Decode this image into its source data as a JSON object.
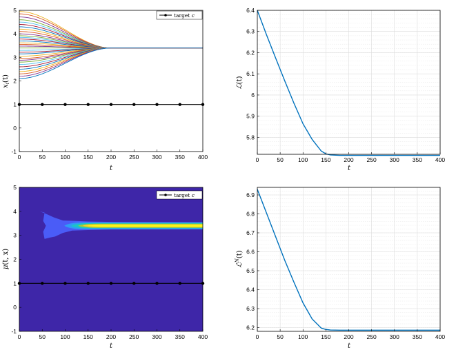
{
  "chart_data": [
    {
      "panel": "top-left",
      "type": "line",
      "xlabel": "t",
      "ylabel": "x_i(t)",
      "xlim": [
        0,
        400
      ],
      "ylim": [
        -1,
        5
      ],
      "xticks": [
        0,
        50,
        100,
        150,
        200,
        250,
        300,
        350,
        400
      ],
      "yticks": [
        -1,
        0,
        1,
        2,
        3,
        4,
        5
      ],
      "grid": false,
      "legend": {
        "placement": "top-right",
        "entries": [
          "target c"
        ]
      },
      "consensus_value": 3.4,
      "consensus_time": 200,
      "initial_values": [
        4.95,
        4.85,
        4.72,
        4.6,
        4.5,
        4.4,
        4.3,
        4.2,
        4.1,
        4.0,
        3.92,
        3.85,
        3.78,
        3.7,
        3.62,
        3.55,
        3.48,
        3.4,
        3.3,
        3.22,
        3.15,
        3.05,
        2.95,
        2.88,
        2.8,
        2.7,
        2.6,
        2.5,
        2.4,
        2.3,
        2.2,
        2.1
      ],
      "series_colors": [
        "#edb120",
        "#d95319",
        "#7e2f8e",
        "#77ac30",
        "#4dbeee",
        "#a2142f",
        "#0072bd",
        "#edb120",
        "#d95319",
        "#7e2f8e",
        "#77ac30",
        "#4dbeee",
        "#a2142f",
        "#0072bd",
        "#edb120",
        "#d95319",
        "#7e2f8e",
        "#77ac30",
        "#4dbeee",
        "#a2142f",
        "#0072bd",
        "#edb120",
        "#d95319",
        "#7e2f8e",
        "#77ac30",
        "#4dbeee",
        "#a2142f",
        "#0072bd",
        "#edb120",
        "#d95319",
        "#7e2f8e",
        "#0072bd"
      ],
      "target": {
        "y": 1,
        "marker_x": [
          0,
          50,
          100,
          150,
          200,
          250,
          300,
          350,
          400
        ],
        "color": "#000000"
      }
    },
    {
      "panel": "top-right",
      "type": "line",
      "xlabel": "t",
      "ylabel": "L(t)",
      "xlim": [
        0,
        400
      ],
      "ylim": [
        5.72,
        6.4
      ],
      "xticks": [
        0,
        50,
        100,
        150,
        200,
        250,
        300,
        350,
        400
      ],
      "yticks": [
        5.8,
        5.9,
        6,
        6.1,
        6.2,
        6.3,
        6.4
      ],
      "grid": true,
      "series": [
        {
          "color": "#0072bd",
          "x": [
            0,
            20,
            40,
            60,
            80,
            100,
            120,
            140,
            150,
            160,
            180,
            200,
            250,
            300,
            350,
            400
          ],
          "values": [
            6.4,
            6.285,
            6.175,
            6.067,
            5.962,
            5.864,
            5.79,
            5.735,
            5.722,
            5.717,
            5.715,
            5.715,
            5.715,
            5.715,
            5.715,
            5.715
          ]
        }
      ]
    },
    {
      "panel": "bottom-left",
      "type": "heatmap",
      "xlabel": "t",
      "ylabel": "μ(t, x)",
      "xlim": [
        0,
        400
      ],
      "ylim": [
        -1,
        5
      ],
      "xticks": [
        0,
        50,
        100,
        150,
        200,
        250,
        300,
        350,
        400
      ],
      "yticks": [
        -1,
        0,
        1,
        2,
        3,
        4,
        5
      ],
      "grid": false,
      "legend": {
        "placement": "top-right",
        "entries": [
          "target c"
        ]
      },
      "background_color": "#3e26a8",
      "band_center": 3.4,
      "level_colors": [
        "#3e26a8",
        "#4a5cf7",
        "#2f9df5",
        "#1ac7c2",
        "#a6c83b",
        "#f9d32a",
        "#f9fb15"
      ],
      "target": {
        "y": 1,
        "marker_x": [
          0,
          50,
          100,
          150,
          200,
          250,
          300,
          350,
          400
        ],
        "color": "#000000"
      }
    },
    {
      "panel": "bottom-right",
      "type": "line",
      "xlabel": "t",
      "ylabel": "L^N(t)",
      "xlim": [
        0,
        400
      ],
      "ylim": [
        6.18,
        6.94
      ],
      "xticks": [
        0,
        50,
        100,
        150,
        200,
        250,
        300,
        350,
        400
      ],
      "yticks": [
        6.2,
        6.3,
        6.4,
        6.5,
        6.6,
        6.7,
        6.8,
        6.9
      ],
      "grid": true,
      "series": [
        {
          "color": "#0072bd",
          "x": [
            0,
            20,
            40,
            60,
            80,
            100,
            120,
            140,
            150,
            160,
            180,
            200,
            250,
            300,
            350,
            400
          ],
          "values": [
            6.93,
            6.805,
            6.68,
            6.555,
            6.44,
            6.33,
            6.245,
            6.197,
            6.19,
            6.187,
            6.186,
            6.186,
            6.186,
            6.186,
            6.186,
            6.186
          ]
        }
      ]
    }
  ],
  "legend_text": {
    "prefix": "target ",
    "var": "c"
  },
  "axis_labels": {
    "tl": {
      "x": "t",
      "y_main": "x",
      "y_sub": "i",
      "y_suffix": "(t)"
    },
    "tr": {
      "x": "t",
      "y_main": "ℒ",
      "y_suffix": "(t)"
    },
    "bl": {
      "x": "t",
      "y_main": "μ",
      "y_suffix": "(t, x)"
    },
    "br": {
      "x": "t",
      "y_main": "ℒ",
      "y_sup": "N",
      "y_suffix": "(t)"
    }
  }
}
